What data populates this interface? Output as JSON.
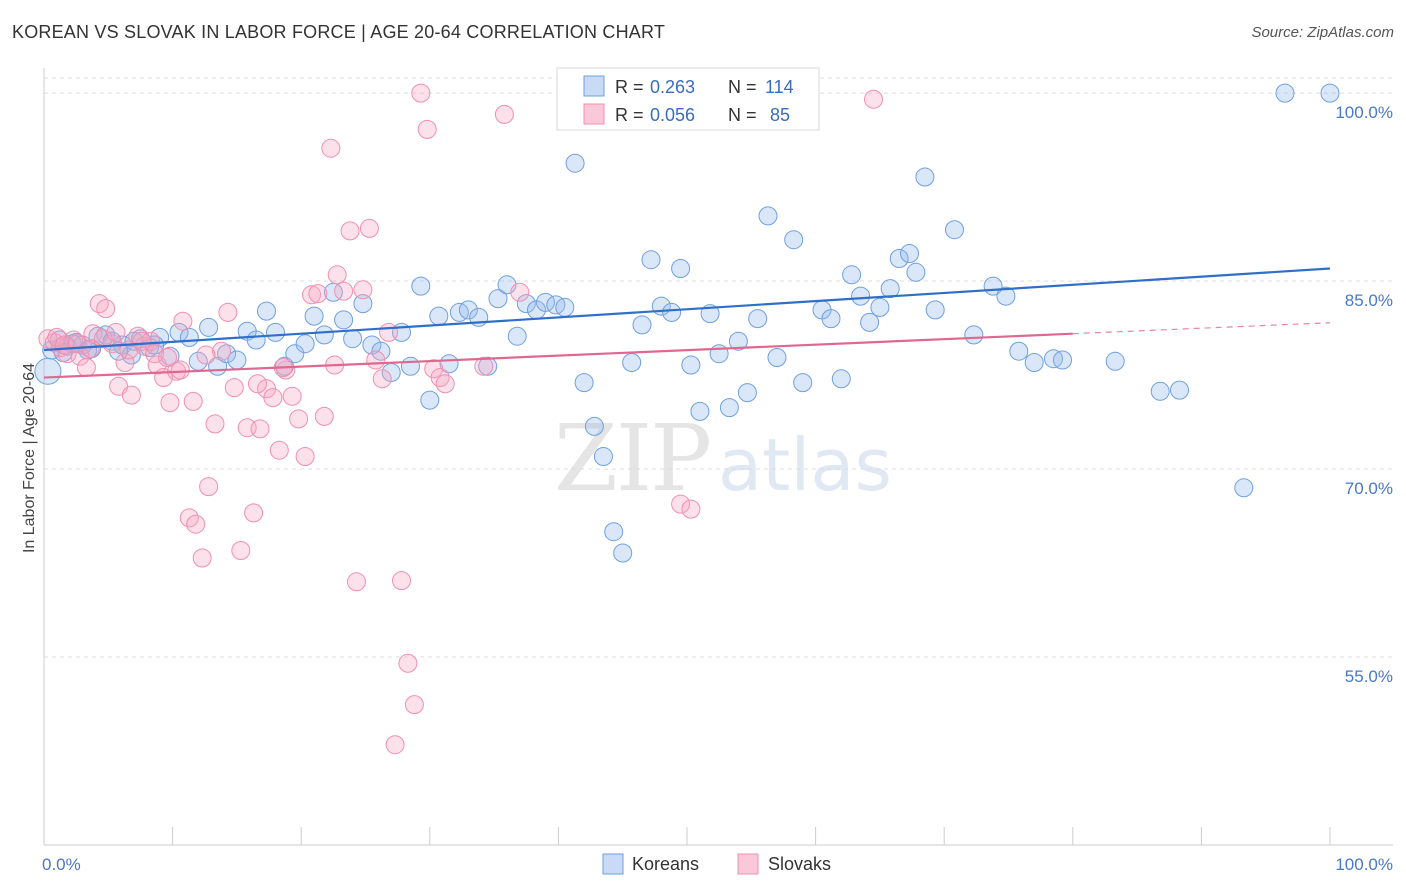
{
  "title": "KOREAN VS SLOVAK IN LABOR FORCE | AGE 20-64 CORRELATION CHART",
  "source": "Source: ZipAtlas.com",
  "watermark": {
    "zip": "ZIP",
    "atlas": "atlas"
  },
  "legend_box": [
    {
      "r_label": "R =",
      "r_value": "0.263",
      "n_label": "N =",
      "n_value": "114",
      "color": "#6fa0e0"
    },
    {
      "r_label": "R =",
      "r_value": "0.056",
      "n_label": "N =",
      "n_value": "85",
      "color": "#f090b0"
    }
  ],
  "chart_data": {
    "type": "scatter",
    "title": "KOREAN VS SLOVAK IN LABOR FORCE | AGE 20-64 CORRELATION CHART",
    "xlabel": "",
    "ylabel": "In Labor Force | Age 20-64",
    "xlim": [
      0,
      100
    ],
    "ylim": [
      40,
      102
    ],
    "x_tick_labels": [
      "0.0%",
      "100.0%"
    ],
    "y_tick_values": [
      55,
      70,
      85,
      100
    ],
    "y_tick_labels": [
      "55.0%",
      "70.0%",
      "85.0%",
      "100.0%"
    ],
    "grid": true,
    "legend_position": "bottom-center",
    "series": [
      {
        "name": "Koreans",
        "color": "#6fa0e0",
        "line_color": "#2f6fc8",
        "trend": {
          "x": [
            0,
            100
          ],
          "y": [
            79.5,
            86.0
          ]
        },
        "points": [
          [
            0.3,
            77.8
          ],
          [
            0.6,
            79.5
          ],
          [
            1.2,
            80.3
          ],
          [
            1.8,
            79.8
          ],
          [
            2.5,
            80.1
          ],
          [
            3.0,
            79.9
          ],
          [
            3.7,
            79.6
          ],
          [
            4.2,
            80.6
          ],
          [
            4.8,
            80.7
          ],
          [
            5.3,
            80.2
          ],
          [
            6.1,
            79.9
          ],
          [
            6.8,
            79.1
          ],
          [
            7.5,
            80.4
          ],
          [
            8.2,
            79.7
          ],
          [
            9.0,
            80.5
          ],
          [
            9.8,
            79.0
          ],
          [
            10.5,
            80.9
          ],
          [
            11.3,
            80.5
          ],
          [
            12.0,
            78.6
          ],
          [
            12.8,
            81.3
          ],
          [
            13.5,
            78.2
          ],
          [
            14.2,
            79.2
          ],
          [
            15.0,
            78.7
          ],
          [
            15.8,
            81.0
          ],
          [
            16.5,
            80.3
          ],
          [
            17.3,
            82.6
          ],
          [
            18.0,
            80.9
          ],
          [
            18.7,
            78.2
          ],
          [
            19.5,
            79.2
          ],
          [
            20.3,
            80.0
          ],
          [
            21.0,
            82.2
          ],
          [
            21.8,
            80.7
          ],
          [
            22.5,
            84.1
          ],
          [
            23.3,
            81.9
          ],
          [
            24.0,
            80.4
          ],
          [
            24.8,
            83.2
          ],
          [
            25.5,
            79.9
          ],
          [
            26.2,
            79.4
          ],
          [
            27.0,
            77.7
          ],
          [
            27.8,
            80.9
          ],
          [
            28.5,
            78.2
          ],
          [
            29.3,
            84.6
          ],
          [
            30.0,
            75.5
          ],
          [
            30.7,
            82.2
          ],
          [
            31.5,
            78.4
          ],
          [
            32.3,
            82.5
          ],
          [
            33.0,
            82.7
          ],
          [
            33.8,
            82.1
          ],
          [
            34.5,
            78.2
          ],
          [
            35.3,
            83.6
          ],
          [
            36.0,
            84.7
          ],
          [
            36.8,
            80.6
          ],
          [
            37.5,
            83.2
          ],
          [
            38.3,
            82.7
          ],
          [
            39.0,
            83.3
          ],
          [
            39.8,
            83.1
          ],
          [
            40.5,
            82.9
          ],
          [
            41.3,
            94.4
          ],
          [
            42.0,
            76.9
          ],
          [
            42.8,
            73.4
          ],
          [
            43.5,
            71.0
          ],
          [
            44.3,
            65.0
          ],
          [
            45.0,
            63.3
          ],
          [
            45.7,
            78.5
          ],
          [
            46.5,
            81.5
          ],
          [
            47.2,
            86.7
          ],
          [
            48.0,
            83.0
          ],
          [
            48.8,
            82.5
          ],
          [
            49.5,
            86.0
          ],
          [
            50.3,
            78.3
          ],
          [
            51.0,
            74.6
          ],
          [
            51.8,
            82.4
          ],
          [
            52.5,
            79.2
          ],
          [
            53.3,
            74.9
          ],
          [
            54.0,
            80.2
          ],
          [
            54.7,
            76.1
          ],
          [
            55.5,
            82.0
          ],
          [
            56.3,
            90.2
          ],
          [
            57.0,
            78.9
          ],
          [
            58.3,
            88.3
          ],
          [
            59.0,
            76.9
          ],
          [
            60.5,
            82.7
          ],
          [
            61.2,
            82.0
          ],
          [
            62.0,
            77.2
          ],
          [
            62.8,
            85.5
          ],
          [
            63.5,
            83.8
          ],
          [
            64.2,
            81.7
          ],
          [
            65.0,
            82.9
          ],
          [
            65.8,
            84.4
          ],
          [
            66.5,
            86.8
          ],
          [
            67.3,
            87.2
          ],
          [
            67.8,
            85.7
          ],
          [
            68.5,
            93.3
          ],
          [
            69.3,
            82.7
          ],
          [
            70.8,
            89.1
          ],
          [
            72.3,
            80.7
          ],
          [
            73.8,
            84.6
          ],
          [
            74.8,
            83.8
          ],
          [
            75.8,
            79.4
          ],
          [
            77.0,
            78.5
          ],
          [
            78.5,
            78.8
          ],
          [
            79.2,
            78.7
          ],
          [
            83.3,
            78.6
          ],
          [
            86.8,
            76.2
          ],
          [
            88.3,
            76.3
          ],
          [
            93.3,
            68.5
          ],
          [
            96.5,
            100.0
          ],
          [
            100.0,
            100.0
          ],
          [
            1.5,
            79.3
          ],
          [
            2.2,
            80.0
          ],
          [
            3.4,
            79.5
          ],
          [
            5.8,
            79.4
          ],
          [
            7.0,
            80.2
          ],
          [
            8.6,
            79.9
          ]
        ]
      },
      {
        "name": "Slovaks",
        "color": "#f090b0",
        "line_color": "#e06890",
        "trend": {
          "x": [
            0,
            80
          ],
          "y": [
            77.3,
            80.8
          ]
        },
        "points": [
          [
            0.3,
            80.4
          ],
          [
            0.8,
            80.1
          ],
          [
            1.3,
            79.7
          ],
          [
            1.8,
            79.2
          ],
          [
            2.3,
            80.3
          ],
          [
            2.8,
            79.0
          ],
          [
            3.3,
            78.1
          ],
          [
            3.8,
            80.8
          ],
          [
            4.3,
            83.2
          ],
          [
            4.8,
            82.8
          ],
          [
            5.3,
            80.0
          ],
          [
            5.8,
            76.6
          ],
          [
            6.3,
            78.5
          ],
          [
            6.8,
            75.9
          ],
          [
            7.3,
            80.6
          ],
          [
            7.8,
            79.8
          ],
          [
            8.3,
            80.2
          ],
          [
            8.8,
            78.3
          ],
          [
            9.3,
            77.3
          ],
          [
            9.8,
            75.3
          ],
          [
            10.3,
            77.8
          ],
          [
            10.8,
            81.8
          ],
          [
            11.3,
            66.1
          ],
          [
            11.8,
            65.6
          ],
          [
            12.3,
            62.9
          ],
          [
            12.8,
            68.6
          ],
          [
            13.3,
            73.6
          ],
          [
            13.8,
            79.4
          ],
          [
            14.3,
            82.5
          ],
          [
            14.8,
            76.5
          ],
          [
            15.3,
            63.5
          ],
          [
            15.8,
            73.3
          ],
          [
            16.3,
            66.5
          ],
          [
            16.8,
            73.2
          ],
          [
            17.3,
            76.4
          ],
          [
            17.8,
            75.7
          ],
          [
            18.3,
            71.5
          ],
          [
            18.8,
            77.9
          ],
          [
            19.3,
            75.8
          ],
          [
            19.8,
            74.0
          ],
          [
            20.3,
            71.0
          ],
          [
            20.8,
            83.9
          ],
          [
            21.3,
            84.0
          ],
          [
            21.8,
            74.2
          ],
          [
            22.3,
            95.6
          ],
          [
            22.8,
            85.5
          ],
          [
            23.3,
            84.2
          ],
          [
            23.8,
            89.0
          ],
          [
            24.3,
            61.0
          ],
          [
            24.8,
            84.3
          ],
          [
            25.3,
            89.2
          ],
          [
            25.8,
            78.7
          ],
          [
            26.3,
            77.2
          ],
          [
            26.8,
            80.9
          ],
          [
            27.3,
            48.0
          ],
          [
            27.8,
            61.1
          ],
          [
            28.3,
            54.5
          ],
          [
            28.8,
            51.2
          ],
          [
            29.3,
            100.0
          ],
          [
            29.8,
            97.1
          ],
          [
            30.3,
            78.0
          ],
          [
            30.8,
            77.3
          ],
          [
            35.8,
            98.3
          ],
          [
            37.0,
            84.1
          ],
          [
            49.5,
            67.2
          ],
          [
            50.3,
            66.8
          ],
          [
            64.5,
            99.5
          ],
          [
            1.0,
            80.5
          ],
          [
            1.6,
            79.9
          ],
          [
            2.6,
            80.0
          ],
          [
            3.6,
            79.6
          ],
          [
            4.6,
            80.4
          ],
          [
            5.6,
            80.9
          ],
          [
            6.6,
            79.5
          ],
          [
            7.6,
            80.2
          ],
          [
            8.6,
            79.2
          ],
          [
            9.6,
            78.9
          ],
          [
            10.6,
            77.9
          ],
          [
            11.6,
            75.4
          ],
          [
            12.6,
            79.1
          ],
          [
            16.6,
            76.8
          ],
          [
            18.6,
            78.1
          ],
          [
            31.2,
            76.8
          ],
          [
            34.2,
            78.2
          ],
          [
            22.6,
            78.3
          ]
        ]
      }
    ]
  }
}
